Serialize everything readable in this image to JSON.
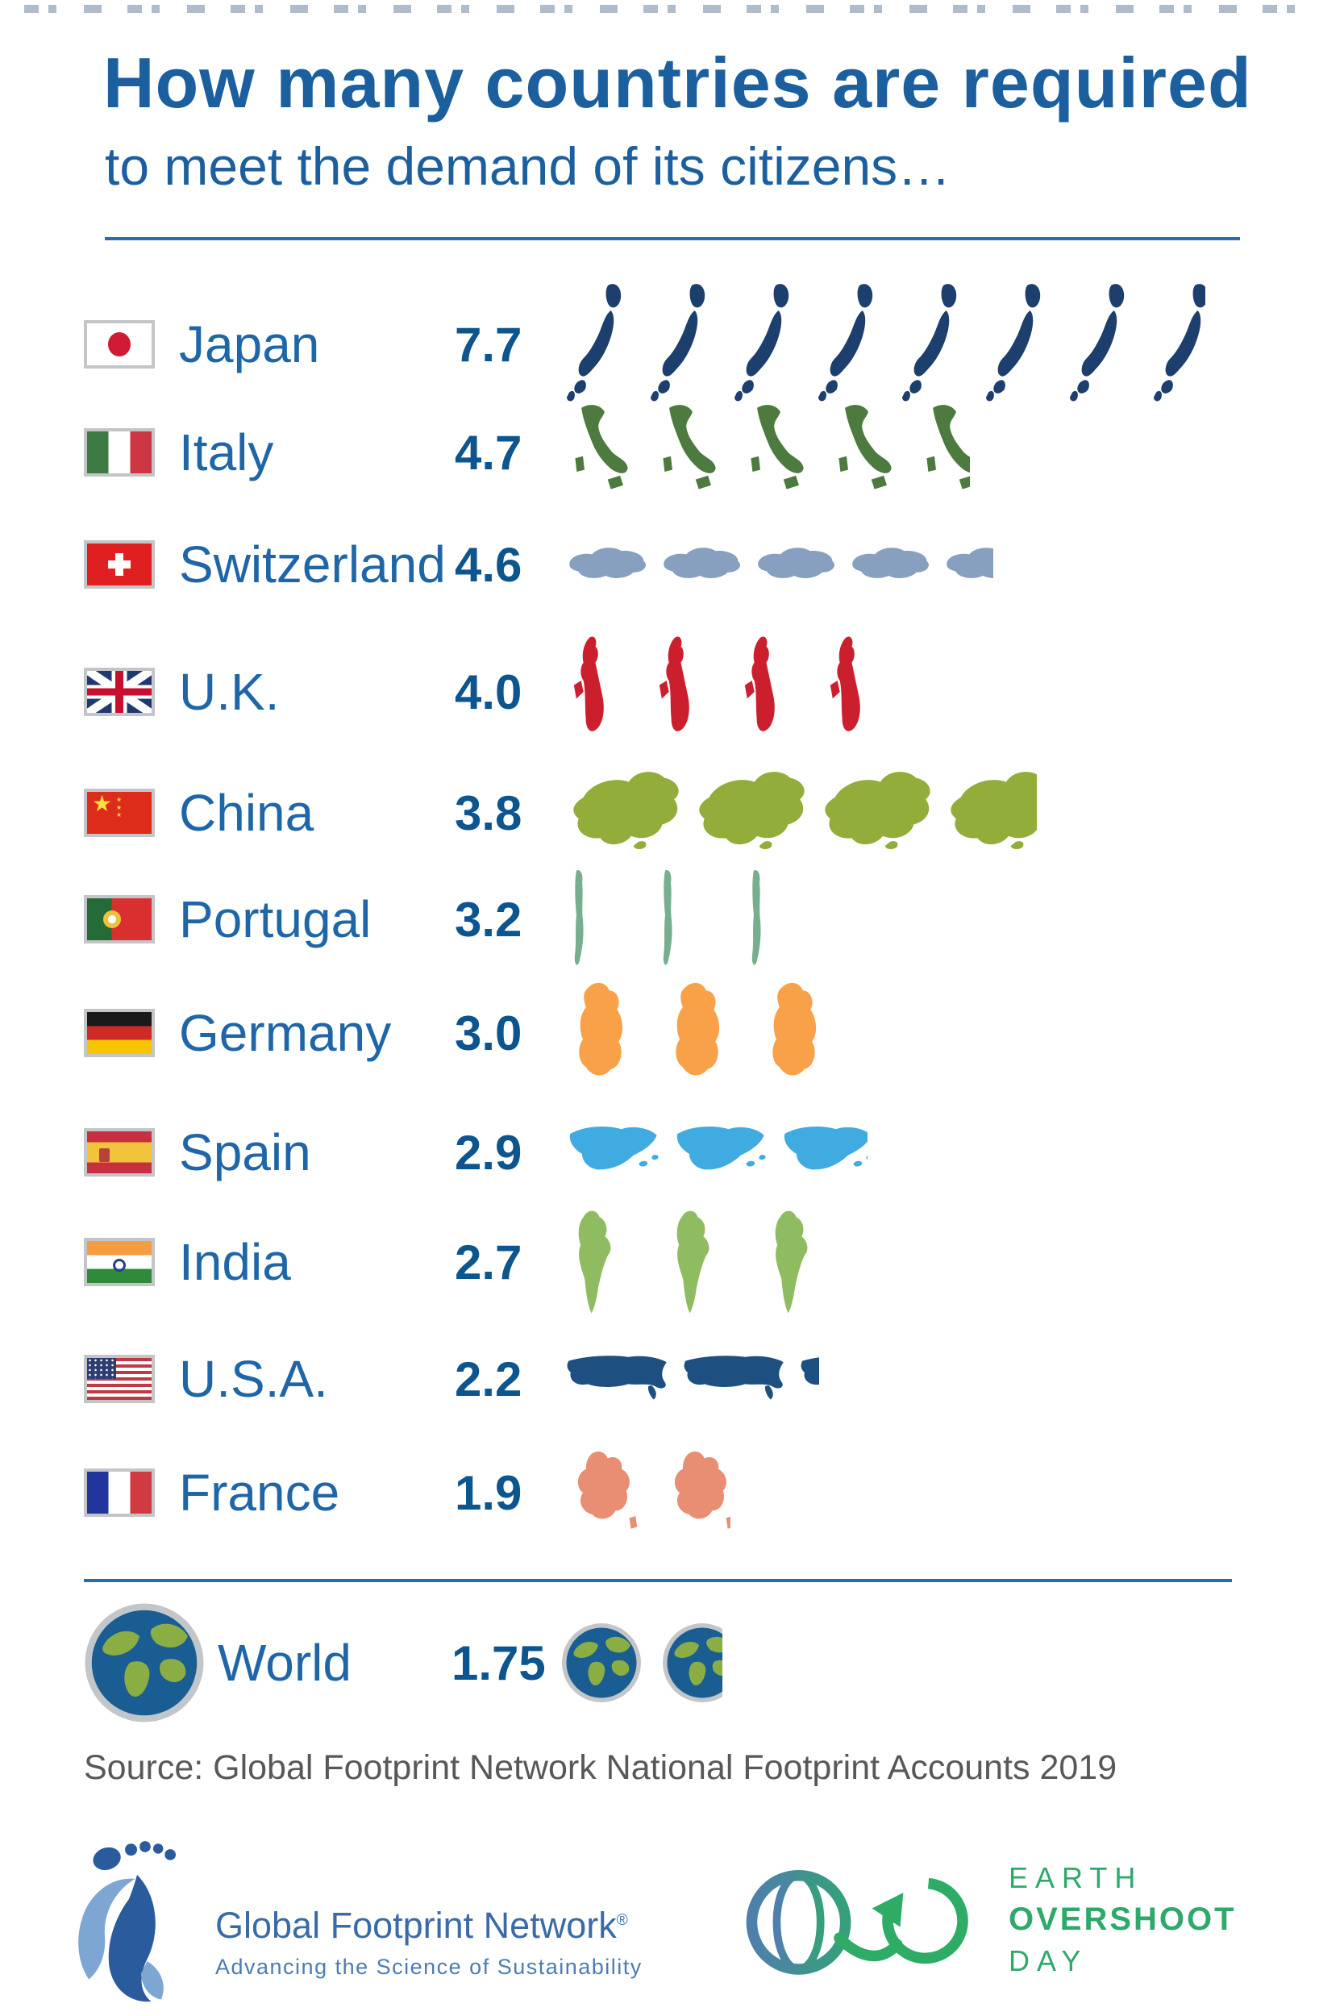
{
  "title": {
    "line1": "How many countries are required",
    "line2": "to meet the demand of its citizens…"
  },
  "rows": [
    {
      "id": "japan",
      "label": "Japan",
      "value": "7.7",
      "count": 7.7,
      "color": "#1d3f6e"
    },
    {
      "id": "italy",
      "label": "Italy",
      "value": "4.7",
      "count": 4.7,
      "color": "#4d7a3e"
    },
    {
      "id": "switzerland",
      "label": "Switzerland",
      "value": "4.6",
      "count": 4.6,
      "color": "#87a0bf"
    },
    {
      "id": "uk",
      "label": "U.K.",
      "value": "4.0",
      "count": 4.0,
      "color": "#cc1f2d"
    },
    {
      "id": "china",
      "label": "China",
      "value": "3.8",
      "count": 3.8,
      "color": "#93ad3b"
    },
    {
      "id": "portugal",
      "label": "Portugal",
      "value": "3.2",
      "count": 3.2,
      "color": "#77ae8d"
    },
    {
      "id": "germany",
      "label": "Germany",
      "value": "3.0",
      "count": 3.0,
      "color": "#f9a149"
    },
    {
      "id": "spain",
      "label": "Spain",
      "value": "2.9",
      "count": 2.9,
      "color": "#3fabe1"
    },
    {
      "id": "india",
      "label": "India",
      "value": "2.7",
      "count": 2.7,
      "color": "#8fbc60"
    },
    {
      "id": "usa",
      "label": "U.S.A.",
      "value": "2.2",
      "count": 2.2,
      "color": "#1d5080"
    },
    {
      "id": "france",
      "label": "France",
      "value": "1.9",
      "count": 1.9,
      "color": "#e98e72"
    }
  ],
  "world": {
    "label": "World",
    "value": "1.75",
    "count": 1.75
  },
  "source": "Source: Global Footprint Network National Footprint Accounts 2019",
  "footer": {
    "gfn": {
      "name": "Global Footprint Network",
      "reg": "®",
      "tagline": "Advancing the Science of Sustainability"
    },
    "eod": {
      "line1": "EARTH",
      "line2": "OVERSHOOT",
      "line3": "DAY"
    }
  },
  "colors": {
    "heading": "#1c5f9f",
    "label": "#1e66a8",
    "value": "#0d558f",
    "divider": "#2a6ca5",
    "source_text": "#57585a",
    "gfn_blue": "#3a6ba6",
    "eod_green": "#2fa96a",
    "globe_ocean": "#1a5d92",
    "globe_land": "#8aad44",
    "globe_ring": "#c3c6c8"
  },
  "chart_data": {
    "type": "pictogram",
    "title": "How many countries are required to meet the demand of its citizens…",
    "categories": [
      "Japan",
      "Italy",
      "Switzerland",
      "U.K.",
      "China",
      "Portugal",
      "Germany",
      "Spain",
      "India",
      "U.S.A.",
      "France",
      "World"
    ],
    "values": [
      7.7,
      4.7,
      4.6,
      4.0,
      3.8,
      3.2,
      3.0,
      2.9,
      2.7,
      2.2,
      1.9,
      1.75
    ],
    "unit": "number of countries (Earths for World row)",
    "legend_position": "none",
    "grid": false,
    "source": "Global Footprint Network National Footprint Accounts 2019"
  }
}
